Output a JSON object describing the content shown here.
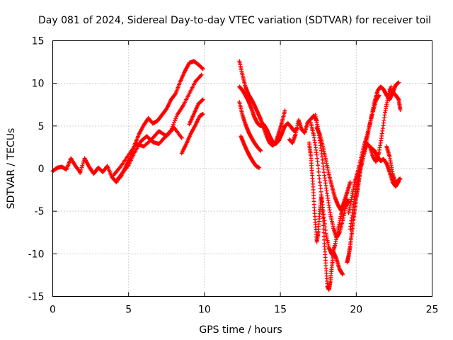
{
  "chart_data": {
    "type": "scatter",
    "title": "Day 081 of 2024, Sidereal Day-to-day VTEC variation (SDTVAR) for receiver toil",
    "xlabel": "GPS time / hours",
    "ylabel": "SDTVAR / TECUs",
    "xlim": [
      0,
      25
    ],
    "ylim": [
      -15,
      15
    ],
    "xticks": [
      0,
      5,
      10,
      15,
      20,
      25
    ],
    "yticks": [
      -15,
      -10,
      -5,
      0,
      5,
      10,
      15
    ],
    "grid": true,
    "legend": "none",
    "marker": "plus",
    "color": "#ff0000",
    "series": [
      {
        "x": [
          0,
          0.3,
          0.6,
          0.9,
          1.2,
          1.5,
          1.8
        ],
        "y": [
          -0.3,
          0.1,
          0.2,
          -0.1,
          1.2,
          0.3,
          -0.4
        ]
      },
      {
        "x": [
          1.8,
          2.1,
          2.4,
          2.7,
          3.0,
          3.3,
          3.6,
          3.9,
          4.2
        ],
        "y": [
          -0.5,
          1.2,
          0.2,
          -0.6,
          0.1,
          -0.4,
          0.3,
          -1.0,
          -1.6
        ]
      },
      {
        "x": [
          4.2,
          4.5,
          4.8,
          5.1,
          5.4,
          5.7,
          6.0,
          6.3,
          6.6,
          6.9,
          7.2,
          7.5,
          7.8,
          8.1,
          8.4,
          8.7,
          9.0,
          9.3,
          9.6,
          9.9
        ],
        "y": [
          -1.5,
          -0.9,
          0.2,
          1.2,
          2.8,
          4.1,
          5.1,
          5.9,
          5.3,
          5.6,
          6.3,
          7.0,
          8.1,
          8.8,
          10.2,
          11.4,
          12.4,
          12.6,
          12.2,
          11.7
        ]
      },
      {
        "x": [
          4.2,
          4.6,
          5.0,
          5.4,
          5.8,
          6.2,
          6.6,
          7.0,
          7.4,
          7.8,
          8.2,
          8.6,
          9.0,
          9.4,
          9.8
        ],
        "y": [
          -1.4,
          -0.5,
          0.4,
          1.9,
          3.2,
          3.8,
          3.1,
          2.9,
          3.7,
          4.5,
          6.3,
          7.4,
          8.8,
          10.2,
          11.0
        ]
      },
      {
        "x": [
          4.0,
          4.5,
          5.0,
          5.5,
          6.0,
          6.5,
          7.0,
          7.5,
          8.0,
          8.5
        ],
        "y": [
          -0.8,
          0.3,
          1.6,
          2.9,
          2.6,
          3.4,
          4.4,
          3.8,
          4.8,
          3.6
        ]
      },
      {
        "x": [
          8.5,
          8.8,
          9.1,
          9.4,
          9.7,
          9.9
        ],
        "y": [
          1.8,
          2.9,
          4.1,
          5.1,
          6.2,
          6.4
        ]
      },
      {
        "x": [
          9.0,
          9.3,
          9.6,
          9.9
        ],
        "y": [
          5.2,
          6.4,
          7.6,
          8.1
        ]
      },
      {
        "x": [
          12.3,
          12.5,
          12.7,
          12.9,
          13.1,
          13.3,
          13.5,
          13.7,
          13.9,
          14.1,
          14.3,
          14.5,
          14.7,
          14.9,
          15.1,
          15.3
        ],
        "y": [
          12.6,
          11.0,
          9.6,
          8.7,
          8.1,
          7.4,
          6.6,
          5.8,
          4.8,
          3.8,
          3.0,
          2.7,
          3.1,
          4.2,
          5.4,
          6.8
        ]
      },
      {
        "x": [
          12.3,
          12.5,
          12.7,
          12.9,
          13.1,
          13.3,
          13.5,
          13.7,
          13.9,
          14.1,
          14.3,
          14.5,
          14.7,
          14.9,
          15.1,
          15.3,
          15.5,
          15.7,
          15.9,
          16.1
        ],
        "y": [
          9.6,
          9.2,
          8.6,
          7.9,
          7.0,
          6.0,
          5.3,
          5.0,
          5.2,
          4.6,
          3.8,
          3.1,
          2.9,
          3.3,
          4.1,
          5.0,
          5.3,
          4.9,
          4.4,
          4.7
        ]
      },
      {
        "x": [
          12.3,
          12.5,
          12.7,
          12.9,
          13.1,
          13.3,
          13.5,
          13.7
        ],
        "y": [
          7.8,
          6.3,
          5.2,
          4.3,
          3.6,
          3.0,
          2.5,
          2.1
        ]
      },
      {
        "x": [
          12.4,
          12.6,
          12.8,
          13.0,
          13.2,
          13.4,
          13.6
        ],
        "y": [
          3.8,
          2.9,
          2.1,
          1.4,
          0.8,
          0.3,
          0.1
        ]
      },
      {
        "x": [
          15.6,
          15.8,
          16.0,
          16.2,
          16.4,
          16.6,
          16.8,
          17.0,
          17.2,
          17.4
        ],
        "y": [
          3.4,
          3.0,
          4.0,
          5.7,
          4.6,
          4.2,
          5.4,
          5.8,
          6.2,
          5.6
        ]
      },
      {
        "x": [
          16.9,
          17.0,
          17.1,
          17.2,
          17.3,
          17.4,
          17.5,
          17.6,
          17.7,
          17.8,
          17.9,
          18.0,
          18.1,
          18.2,
          18.3,
          18.4,
          18.5,
          18.7,
          18.9,
          19.1
        ],
        "y": [
          3.0,
          1.5,
          -0.8,
          -3.5,
          -6.3,
          -8.6,
          -7.4,
          -5.0,
          -3.1,
          -5.4,
          -8.8,
          -11.4,
          -13.8,
          -14.2,
          -13.2,
          -11.4,
          -9.8,
          -10.6,
          -11.8,
          -12.4
        ]
      },
      {
        "x": [
          17.0,
          17.2,
          17.4,
          17.6,
          17.8,
          18.0,
          18.2,
          18.4,
          18.6,
          18.8,
          19.0,
          19.2,
          19.4
        ],
        "y": [
          5.4,
          3.9,
          1.6,
          -1.6,
          -4.6,
          -7.6,
          -9.3,
          -10.1,
          -9.0,
          -7.2,
          -5.4,
          -4.2,
          -3.6
        ]
      },
      {
        "x": [
          17.3,
          17.5,
          17.7,
          17.9,
          18.1,
          18.3,
          18.5,
          18.7,
          18.9,
          19.1,
          19.3,
          19.5
        ],
        "y": [
          6.3,
          4.5,
          2.1,
          -0.8,
          -3.2,
          -5.4,
          -7.0,
          -8.1,
          -7.5,
          -6.1,
          -4.5,
          -3.8
        ]
      },
      {
        "x": [
          17.4,
          17.6,
          17.8,
          18.0,
          18.2,
          18.4,
          18.6,
          18.8,
          19.0,
          19.2,
          19.4,
          19.6
        ],
        "y": [
          4.8,
          4.0,
          2.6,
          1.0,
          -0.7,
          -2.1,
          -3.4,
          -4.3,
          -4.9,
          -3.9,
          -2.8,
          -1.6
        ]
      },
      {
        "x": [
          19.4,
          19.5,
          19.6,
          19.7,
          19.8,
          19.9,
          20.0,
          20.1,
          20.2,
          20.3,
          20.5,
          20.7,
          20.9,
          21.1,
          21.3,
          21.5,
          21.7,
          21.9,
          22.1,
          22.3
        ],
        "y": [
          -11.0,
          -10.2,
          -9.1,
          -7.6,
          -6.1,
          -4.8,
          -3.4,
          -2.3,
          -1.1,
          0.2,
          1.8,
          2.9,
          2.6,
          1.4,
          0.8,
          1.9,
          4.1,
          6.6,
          8.4,
          9.6
        ]
      },
      {
        "x": [
          19.6,
          19.8,
          20.0,
          20.2,
          20.4,
          20.6,
          20.8,
          21.0,
          21.2,
          21.4,
          21.6,
          21.8,
          22.0,
          22.2,
          22.4,
          22.6,
          22.8
        ],
        "y": [
          -7.1,
          -4.5,
          -2.1,
          -0.4,
          0.8,
          2.4,
          4.3,
          6.1,
          7.8,
          9.1,
          9.6,
          9.3,
          8.6,
          8.1,
          8.9,
          9.8,
          10.1
        ]
      },
      {
        "x": [
          19.5,
          19.7,
          19.9,
          20.1,
          20.3,
          20.5,
          20.7,
          20.9,
          21.1,
          21.3,
          21.5
        ],
        "y": [
          -5.2,
          -3.4,
          -1.6,
          -0.4,
          1.1,
          2.6,
          3.8,
          5.3,
          6.7,
          8.0,
          8.6
        ]
      },
      {
        "x": [
          21.0,
          21.2,
          21.4,
          21.6,
          21.8,
          22.0,
          22.2,
          22.4,
          22.6,
          22.8
        ],
        "y": [
          2.4,
          2.1,
          1.4,
          0.9,
          1.1,
          0.6,
          -0.4,
          -1.6,
          -2.1,
          -1.5
        ]
      },
      {
        "x": [
          22.0,
          22.2,
          22.4,
          22.6,
          22.8,
          22.9
        ],
        "y": [
          2.6,
          1.4,
          -0.6,
          -1.8,
          -1.3,
          -1.2
        ]
      },
      {
        "x": [
          22.2,
          22.4,
          22.6,
          22.8,
          22.9
        ],
        "y": [
          9.3,
          9.0,
          8.6,
          8.1,
          6.9
        ]
      }
    ]
  }
}
